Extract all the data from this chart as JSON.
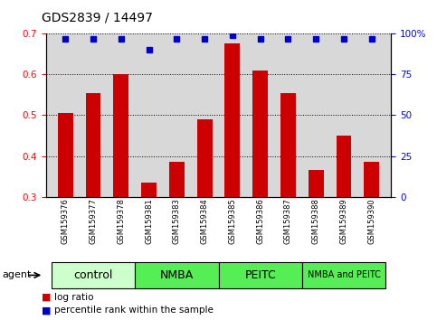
{
  "title": "GDS2839 / 14497",
  "samples": [
    "GSM159376",
    "GSM159377",
    "GSM159378",
    "GSM159381",
    "GSM159383",
    "GSM159384",
    "GSM159385",
    "GSM159386",
    "GSM159387",
    "GSM159388",
    "GSM159389",
    "GSM159390"
  ],
  "log_ratio": [
    0.505,
    0.555,
    0.6,
    0.335,
    0.385,
    0.49,
    0.675,
    0.61,
    0.555,
    0.365,
    0.45,
    0.385
  ],
  "percentile_rank": [
    97,
    97,
    97,
    90,
    97,
    97,
    99,
    97,
    97,
    97,
    97,
    97
  ],
  "ylim_left": [
    0.3,
    0.7
  ],
  "ylim_right": [
    0,
    100
  ],
  "yticks_left": [
    0.3,
    0.4,
    0.5,
    0.6,
    0.7
  ],
  "yticks_right": [
    0,
    25,
    50,
    75,
    100
  ],
  "ytick_labels_right": [
    "0",
    "25",
    "50",
    "75",
    "100%"
  ],
  "bar_color": "#cc0000",
  "dot_color": "#0000cc",
  "groups_info": [
    {
      "label": "control",
      "start": 0,
      "end": 3,
      "color": "#ccffcc"
    },
    {
      "label": "NMBA",
      "start": 3,
      "end": 6,
      "color": "#55ee55"
    },
    {
      "label": "PEITC",
      "start": 6,
      "end": 9,
      "color": "#55ee55"
    },
    {
      "label": "NMBA and PEITC",
      "start": 9,
      "end": 12,
      "color": "#55ee55"
    }
  ],
  "legend_red_label": "log ratio",
  "legend_blue_label": "percentile rank within the sample",
  "background_color": "#ffffff",
  "plot_bg_color": "#d8d8d8",
  "title_fontsize": 10,
  "tick_fontsize": 7.5,
  "bar_width": 0.55
}
